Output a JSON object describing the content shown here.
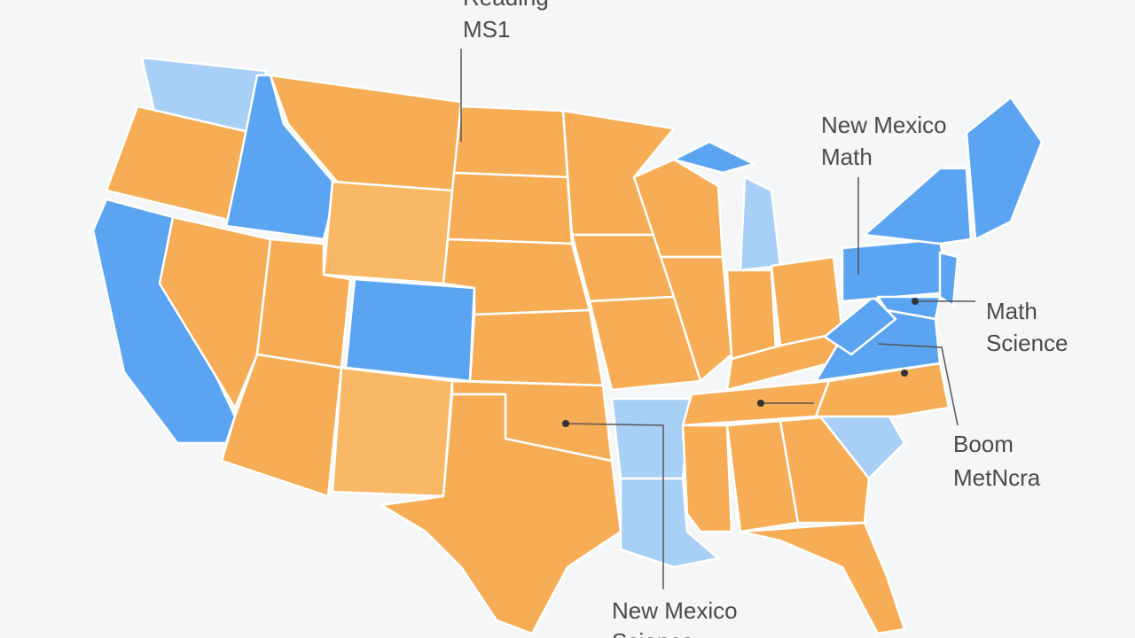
{
  "labels": [
    {
      "lines": [
        "Reading",
        "MS1"
      ]
    },
    {
      "lines": [
        "New Mexico",
        "Math"
      ]
    },
    {
      "lines": [
        "Math",
        "Science"
      ]
    },
    {
      "lines": [
        "Boom",
        "MetNcra"
      ]
    },
    {
      "lines": [
        "New Mexico",
        "Science"
      ]
    }
  ]
}
